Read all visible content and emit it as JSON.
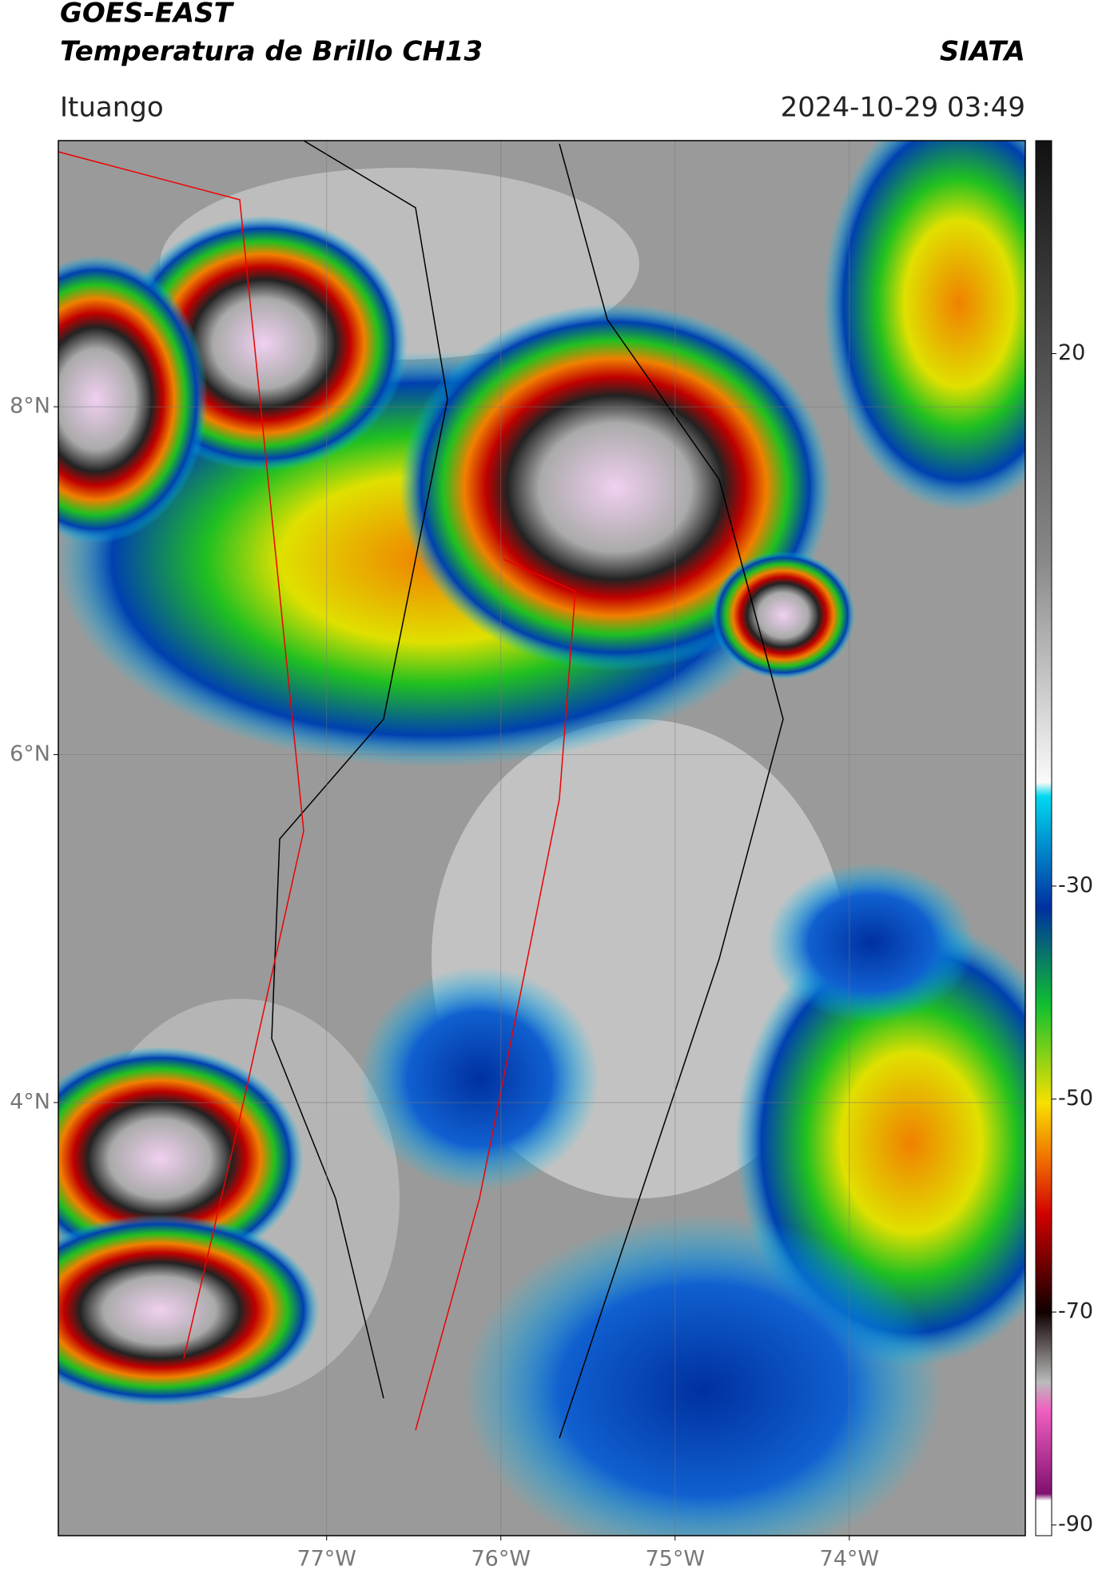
{
  "header": {
    "title": "GOES-EAST",
    "subtitle": "Temperatura de Brillo CH13",
    "agency": "SIATA",
    "region": "Ituango",
    "datetime": "2024-10-29 03:49"
  },
  "map": {
    "lonlim": [
      -78.54,
      -72.99
    ],
    "latlim": [
      1.51,
      9.53
    ],
    "lat_ticks": [
      {
        "value": 8,
        "label": "8°N"
      },
      {
        "value": 6,
        "label": "6°N"
      },
      {
        "value": 4,
        "label": "4°N"
      }
    ],
    "lon_ticks": [
      {
        "value": -77,
        "label": "77°W"
      },
      {
        "value": -76,
        "label": "76°W"
      },
      {
        "value": -75,
        "label": "75°W"
      },
      {
        "value": -74,
        "label": "74°W"
      }
    ]
  },
  "colorbar": {
    "lim": [
      -91,
      40
    ],
    "ticks": [
      20,
      -30,
      -50,
      -70,
      -90
    ]
  }
}
